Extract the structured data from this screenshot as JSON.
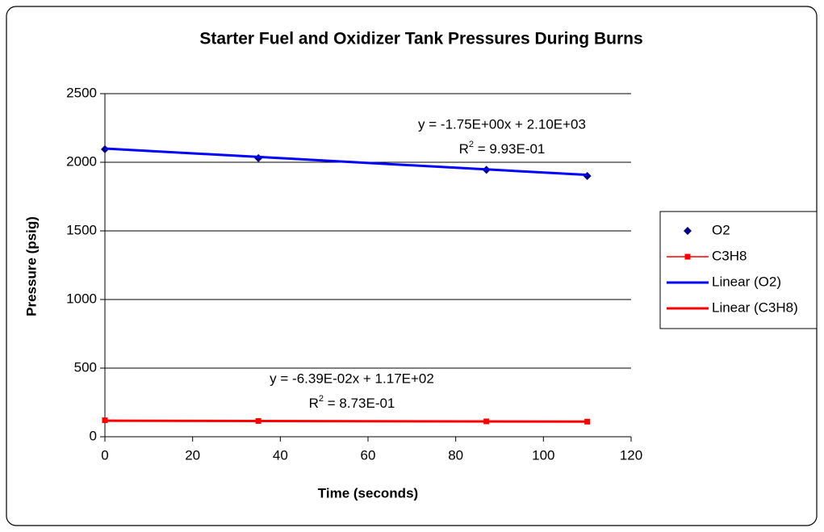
{
  "chart_data": {
    "type": "scatter",
    "title": "Starter Fuel and Oxidizer Tank Pressures During Burns",
    "x_label": "Time (seconds)",
    "y_label": "Pressure (psig)",
    "xlim": [
      0,
      120
    ],
    "xticks": [
      0,
      20,
      40,
      60,
      80,
      100,
      120
    ],
    "ylim": [
      0,
      2500
    ],
    "yticks": [
      0,
      500,
      1000,
      1500,
      2000,
      2500
    ],
    "grid": true,
    "legend": "right",
    "series": [
      {
        "name": "O2",
        "color": "#000080",
        "marker": "diamond",
        "line": false,
        "x": [
          0,
          35,
          87,
          110
        ],
        "values": [
          2095,
          2030,
          1945,
          1900
        ]
      },
      {
        "name": "C3H8",
        "color": "#ff0000",
        "marker": "square",
        "line": true,
        "x": [
          0,
          35,
          87,
          110
        ],
        "values": [
          120,
          115,
          112,
          110
        ]
      },
      {
        "name": "Linear (O2)",
        "color": "#0000ff",
        "marker": null,
        "line": true,
        "x": [
          0,
          110
        ],
        "values": [
          2100,
          1908
        ]
      },
      {
        "name": "Linear (C3H8)",
        "color": "#ff0000",
        "marker": null,
        "line": true,
        "x": [
          0,
          110
        ],
        "values": [
          117,
          110
        ]
      }
    ],
    "annotations": [
      {
        "equation": "y = -1.75E+00x + 2.10E+03",
        "r2": {
          "base": "R",
          "sup": "2",
          "rest": " = 9.93E-01"
        }
      },
      {
        "equation": "y = -6.39E-02x + 1.17E+02",
        "r2": {
          "base": "R",
          "sup": "2",
          "rest": " = 8.73E-01"
        }
      }
    ]
  }
}
